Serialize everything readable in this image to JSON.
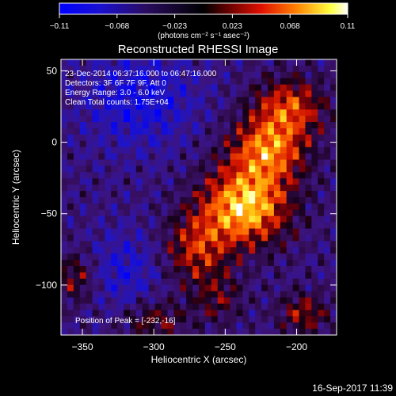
{
  "colorbar": {
    "ticks": [
      "-0.11",
      "-0.068",
      "-0.023",
      "0.023",
      "0.068",
      "0.11"
    ],
    "unit_label": "(photons cm⁻² s⁻¹ asec⁻²)",
    "range": [
      -0.11,
      0.11
    ]
  },
  "chart_data": {
    "type": "heatmap",
    "title": "Reconstructed RHESSI Image",
    "xlabel": "Heliocentric X (arcsec)",
    "ylabel": "Heliocentric Y (arcsec)",
    "xlim": [
      -365,
      -172
    ],
    "ylim": [
      -135,
      58
    ],
    "xticks": [
      -350,
      -300,
      -250,
      -200
    ],
    "xtick_labels": [
      "−350",
      "−300",
      "−250",
      "−200"
    ],
    "yticks": [
      50,
      0,
      -50,
      -100
    ],
    "ytick_labels": [
      "50",
      "0",
      "−50",
      "−100"
    ],
    "annotations": [
      "23-Dec-2014 06:37:16.000 to 06:47:16.000",
      "Detectors: 3F 6F 7F 9F, Att 0",
      "Energy Range: 3.0 - 6.0 keV",
      "Clean     Total counts: 1.75E+04"
    ],
    "peak_label": "Position of Peak = [-232,-16]",
    "peak_position": [
      -232,
      -16
    ],
    "colorscale": [
      "#0000ff",
      "#2010a0",
      "#3a1050",
      "#000000",
      "#8b0000",
      "#ff2000",
      "#ff9000",
      "#ffff00",
      "#ffffff"
    ]
  },
  "footer": {
    "timestamp": "16-Sep-2017 11:39"
  }
}
